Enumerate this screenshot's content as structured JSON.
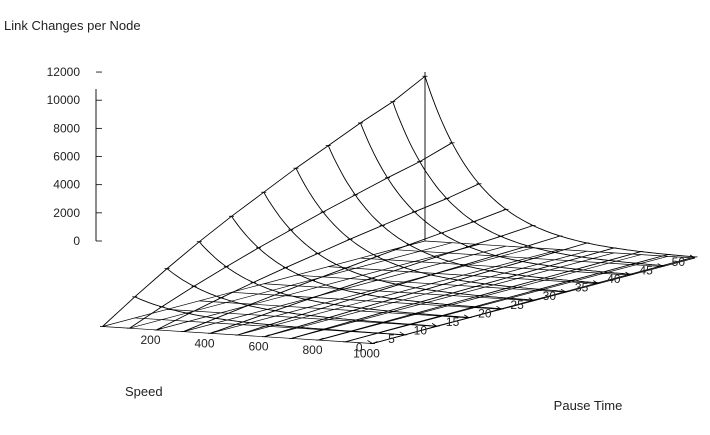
{
  "chart_data": {
    "type": "surface",
    "title": "",
    "zlabel": "Link Changes per Node",
    "xlabel": "Pause Time",
    "ylabel": "Speed",
    "z_ticks": [
      "0",
      "2000",
      "4000",
      "6000",
      "8000",
      "10000",
      "12000"
    ],
    "pause_ticks": [
      "200",
      "400",
      "600",
      "800",
      "1000"
    ],
    "speed_ticks": [
      "0",
      "5",
      "10",
      "15",
      "20",
      "25",
      "30",
      "35",
      "40",
      "45",
      "50"
    ],
    "zlim": [
      0,
      12000
    ],
    "pause_range": [
      0,
      1000
    ],
    "speed_range": [
      0,
      50
    ],
    "pause_times": [
      0,
      100,
      200,
      300,
      400,
      500,
      600,
      700,
      800,
      900,
      1000
    ],
    "speeds": [
      0,
      5,
      10,
      15,
      20,
      25,
      30,
      35,
      40,
      45,
      50
    ],
    "link_changes_at_zero_pause": [
      0,
      1500,
      2900,
      4200,
      5400,
      6500,
      7600,
      8600,
      9600,
      10500,
      11700
    ],
    "grid": false,
    "colors": {
      "lines": "#000000",
      "text": "#222222",
      "background": "#ffffff"
    }
  }
}
